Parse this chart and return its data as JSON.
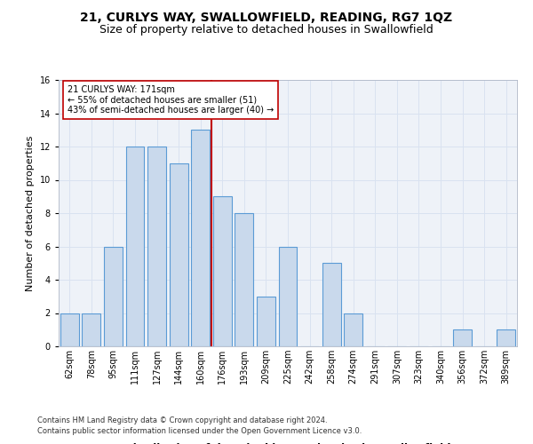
{
  "title1": "21, CURLYS WAY, SWALLOWFIELD, READING, RG7 1QZ",
  "title2": "Size of property relative to detached houses in Swallowfield",
  "xlabel": "Distribution of detached houses by size in Swallowfield",
  "ylabel": "Number of detached properties",
  "bins": [
    "62sqm",
    "78sqm",
    "95sqm",
    "111sqm",
    "127sqm",
    "144sqm",
    "160sqm",
    "176sqm",
    "193sqm",
    "209sqm",
    "225sqm",
    "242sqm",
    "258sqm",
    "274sqm",
    "291sqm",
    "307sqm",
    "323sqm",
    "340sqm",
    "356sqm",
    "372sqm",
    "389sqm"
  ],
  "values": [
    2,
    2,
    6,
    12,
    12,
    11,
    13,
    9,
    8,
    3,
    6,
    0,
    5,
    2,
    0,
    0,
    0,
    0,
    1,
    0,
    1
  ],
  "bar_color": "#c9d9ec",
  "bar_edge_color": "#5b9bd5",
  "vline_color": "#c00000",
  "annotation_text": "21 CURLYS WAY: 171sqm\n← 55% of detached houses are smaller (51)\n43% of semi-detached houses are larger (40) →",
  "annotation_box_color": "#ffffff",
  "annotation_box_edge_color": "#c00000",
  "ylim": [
    0,
    16
  ],
  "yticks": [
    0,
    2,
    4,
    6,
    8,
    10,
    12,
    14,
    16
  ],
  "grid_color": "#d9e2f0",
  "background_color": "#eef2f8",
  "footer1": "Contains HM Land Registry data © Crown copyright and database right 2024.",
  "footer2": "Contains public sector information licensed under the Open Government Licence v3.0.",
  "title1_fontsize": 10,
  "title2_fontsize": 9,
  "annotation_fontsize": 7,
  "ylabel_fontsize": 8,
  "xlabel_fontsize": 8.5,
  "tick_fontsize": 7,
  "footer_fontsize": 6
}
